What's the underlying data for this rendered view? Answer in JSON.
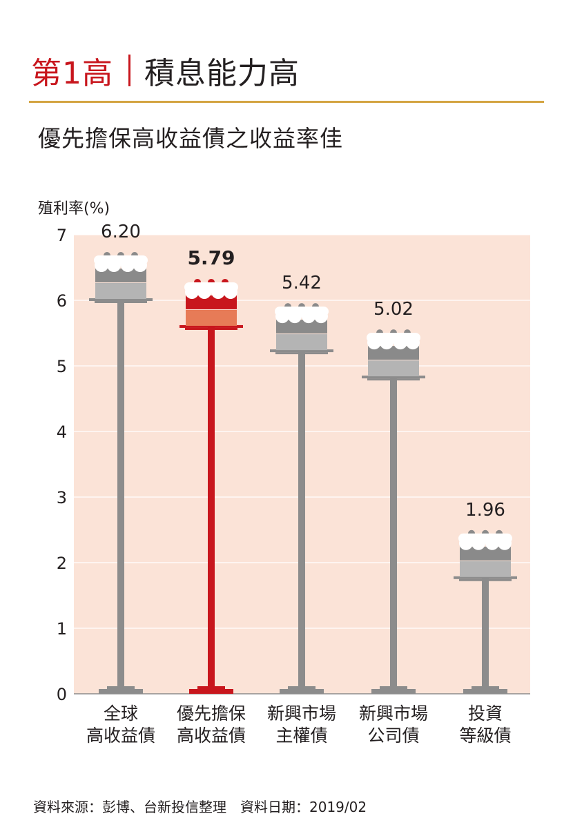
{
  "header": {
    "number_label": "第1高",
    "title": "積息能力高"
  },
  "subtitle": "優先擔保高收益債之收益率佳",
  "footer": {
    "source": "資料來源：彭博、台新投信整理　資料日期：2019/02"
  },
  "colors": {
    "accent": "#c8161d",
    "gold_rule": "#d4a441",
    "plot_bg": "#fbe3d7",
    "stand_gray": "#8c8c8c",
    "highlight_layer": "#e77b57"
  },
  "chart_data": {
    "type": "bar",
    "title": "優先擔保高收益債之收益率佳",
    "ylabel": "殖利率(%)",
    "xlabel": "",
    "ylim": [
      0,
      7
    ],
    "yticks": [
      "0",
      "1",
      "2",
      "3",
      "4",
      "5",
      "6",
      "7"
    ],
    "grid": true,
    "categories": [
      [
        "全球",
        "高收益債"
      ],
      [
        "優先擔保",
        "高收益債"
      ],
      [
        "新興市場",
        "主權債"
      ],
      [
        "新興市場",
        "公司債"
      ],
      [
        "投資",
        "等級債"
      ]
    ],
    "values": [
      6.2,
      5.79,
      5.42,
      5.02,
      1.96
    ],
    "value_labels": [
      "6.20",
      "5.79",
      "5.42",
      "5.02",
      "1.96"
    ],
    "highlight_index": 1
  }
}
